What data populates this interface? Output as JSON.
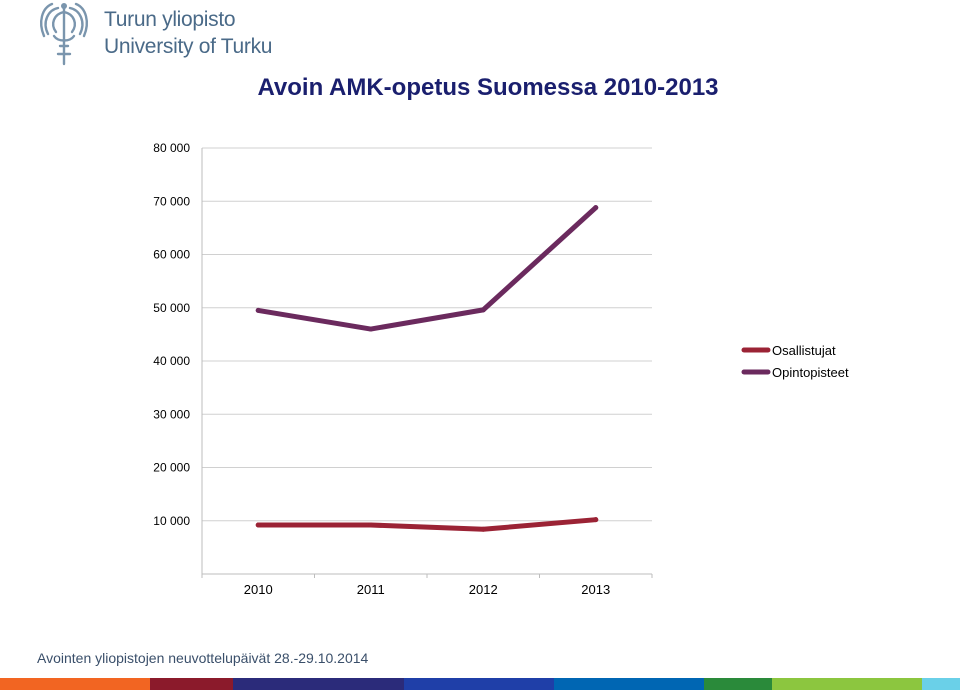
{
  "header": {
    "logo_line1": "Turun yliopisto",
    "logo_line2": "University of Turku",
    "title": "Avoin AMK-opetus Suomessa 2010-2013"
  },
  "footer": {
    "text": "Avointen yliopistojen neuvottelupäivät 28.-29.10.2014"
  },
  "brand_stripe": [
    "#f26522",
    "#8b1a2b",
    "#2b2b7a",
    "#1f3fa8",
    "#0066b3",
    "#2a8a3a",
    "#8cc63f",
    "#6ad0e8"
  ],
  "chart_data": {
    "type": "line",
    "title": "Avoin AMK-opetus Suomessa 2010-2013",
    "categories": [
      "2010",
      "2011",
      "2012",
      "2013"
    ],
    "y_ticks": [
      "10 000",
      "20 000",
      "30 000",
      "40 000",
      "50 000",
      "60 000",
      "70 000",
      "80 000"
    ],
    "ylim": [
      0,
      80000
    ],
    "grid": true,
    "legend_position": "right",
    "series": [
      {
        "name": "Osallistujat",
        "color": "#9b2335",
        "values": [
          9200,
          9200,
          8400,
          10200
        ]
      },
      {
        "name": "Opintopisteet",
        "color": "#6b2a5e",
        "values": [
          49500,
          46000,
          49600,
          68800
        ]
      }
    ]
  }
}
